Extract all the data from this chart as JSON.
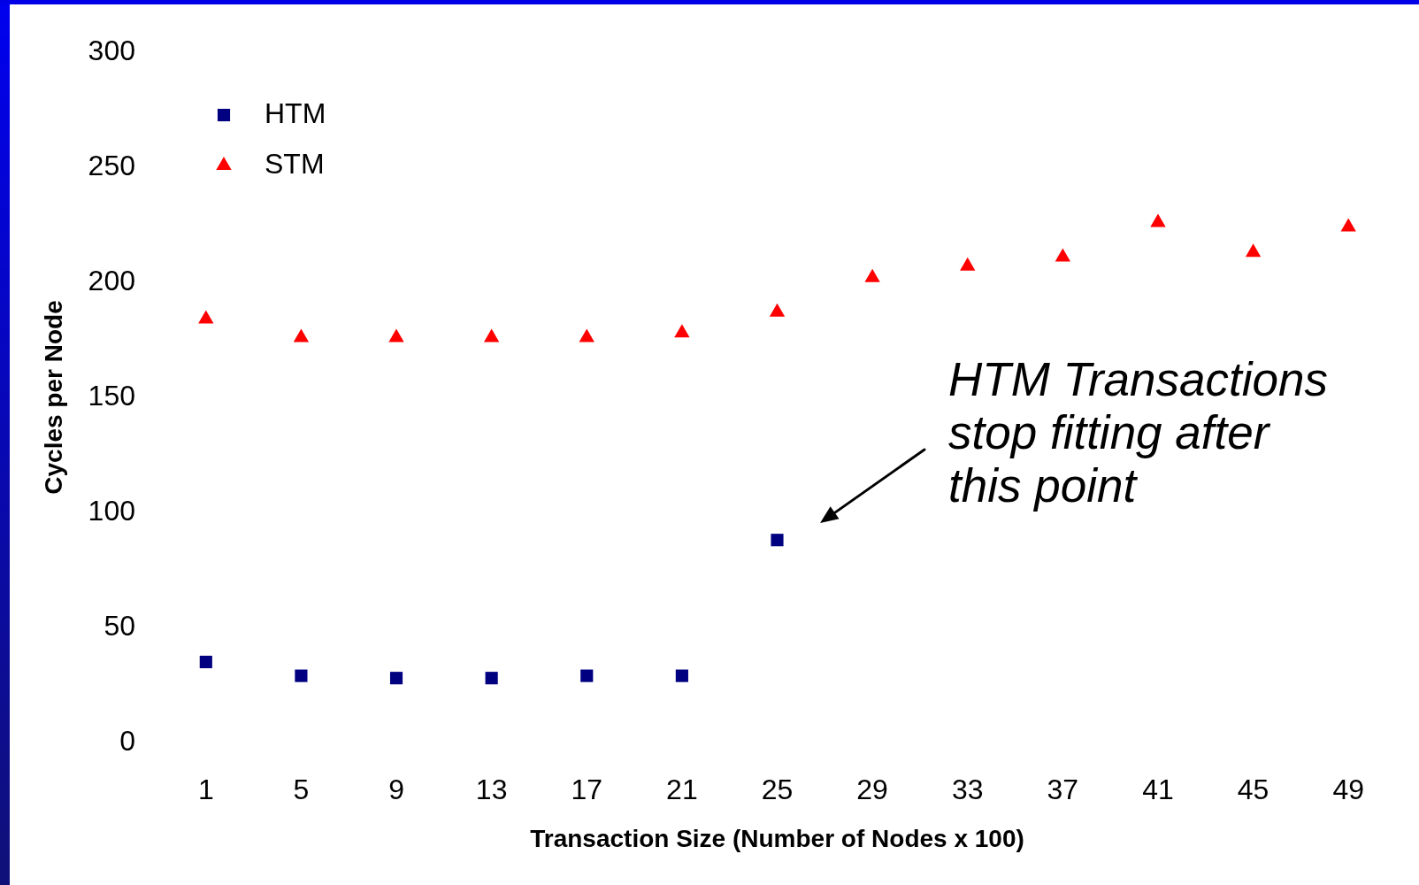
{
  "chart_data": {
    "type": "scatter",
    "xlabel": "Transaction Size (Number of Nodes x 100)",
    "ylabel": "Cycles per Node",
    "categories": [
      "1",
      "5",
      "9",
      "13",
      "17",
      "21",
      "25",
      "29",
      "33",
      "37",
      "41",
      "45",
      "49"
    ],
    "series": [
      {
        "name": "HTM",
        "color": "#000080",
        "marker": "square",
        "values": [
          35,
          29,
          28,
          28,
          29,
          29,
          88,
          null,
          null,
          null,
          null,
          null,
          null
        ]
      },
      {
        "name": "STM",
        "color": "#ff0000",
        "marker": "triangle",
        "values": [
          184,
          176,
          176,
          176,
          176,
          178,
          187,
          202,
          207,
          211,
          226,
          213,
          224
        ]
      }
    ],
    "ylim": [
      0,
      300
    ],
    "yticks": [
      0,
      50,
      100,
      150,
      200,
      250,
      300
    ],
    "grid": false,
    "legend": "top left",
    "annotations": [
      "HTM Transactions\nstop fitting after\nthis point"
    ]
  }
}
